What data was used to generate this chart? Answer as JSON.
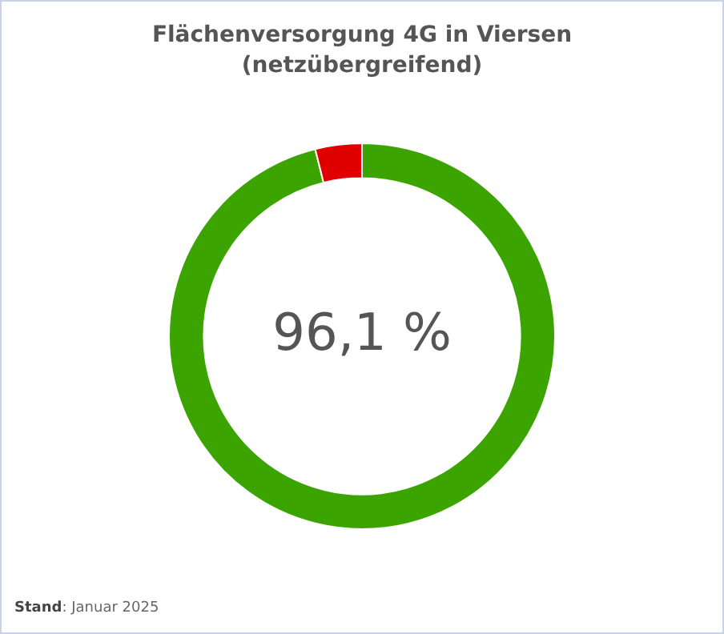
{
  "chart_data": {
    "type": "donut",
    "title": "Flächenversorgung 4G in Viersen",
    "subtitle": "(netzübergreifend)",
    "categories": [
      null,
      null
    ],
    "values": [
      96.1,
      3.9
    ],
    "colors": [
      "#3ca400",
      "#e00000"
    ],
    "value_labels": [
      "96,1 %",
      null
    ],
    "legend": false,
    "annotations": [
      "Stand: Januar 2025"
    ]
  }
}
